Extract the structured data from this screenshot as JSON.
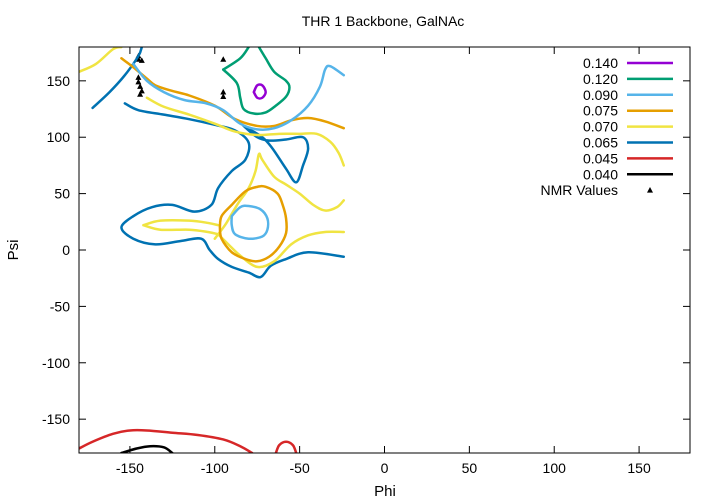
{
  "chart_data": {
    "type": "line",
    "title": "THR 1 Backbone, GalNAc",
    "xlabel": "Phi",
    "ylabel": "Psi",
    "xlim": [
      -180,
      180
    ],
    "ylim": [
      -180,
      180
    ],
    "xticks": [
      -150,
      -100,
      -50,
      0,
      50,
      100,
      150
    ],
    "yticks": [
      -150,
      -100,
      -50,
      0,
      50,
      100,
      150
    ],
    "grid": false,
    "legend_position": "top-right",
    "series": [
      {
        "name": "0.140",
        "color": "#9400d3",
        "contours": [
          [
            [
              -77,
              140
            ],
            [
              -75,
              146
            ],
            [
              -72,
              146
            ],
            [
              -70,
              140
            ],
            [
              -72,
              135
            ],
            [
              -75,
              135
            ],
            [
              -77,
              140
            ]
          ]
        ]
      },
      {
        "name": "0.120",
        "color": "#009e73",
        "contours": [
          [
            [
              -95,
              160
            ],
            [
              -87,
              148
            ],
            [
              -85,
              135
            ],
            [
              -83,
              125
            ],
            [
              -77,
              121
            ],
            [
              -70,
              122
            ],
            [
              -64,
              128
            ],
            [
              -58,
              136
            ],
            [
              -56,
              144
            ],
            [
              -58,
              150
            ],
            [
              -65,
              158
            ],
            [
              -70,
              170
            ],
            [
              -74,
              180
            ]
          ],
          [
            [
              -80,
              180
            ],
            [
              -85,
              170
            ],
            [
              -95,
              160
            ]
          ]
        ]
      },
      {
        "name": "0.090",
        "color": "#56b4e9",
        "contours": [
          [
            [
              -148,
              165
            ],
            [
              -140,
              150
            ],
            [
              -130,
              140
            ],
            [
              -118,
              133
            ],
            [
              -105,
              130
            ],
            [
              -95,
              124
            ],
            [
              -85,
              112
            ],
            [
              -75,
              107
            ],
            [
              -65,
              108
            ],
            [
              -55,
              115
            ],
            [
              -45,
              128
            ],
            [
              -38,
              145
            ],
            [
              -35,
              160
            ],
            [
              -32,
              163
            ],
            [
              -24,
              155
            ]
          ],
          [
            [
              -90,
              30
            ],
            [
              -85,
              38
            ],
            [
              -80,
              39
            ],
            [
              -73,
              36
            ],
            [
              -69,
              28
            ],
            [
              -69,
              18
            ],
            [
              -72,
              12
            ],
            [
              -80,
              10
            ],
            [
              -88,
              14
            ],
            [
              -90,
              22
            ],
            [
              -90,
              30
            ]
          ]
        ]
      },
      {
        "name": "0.075",
        "color": "#e69f00",
        "contours": [
          [
            [
              -155,
              170
            ],
            [
              -148,
              162
            ],
            [
              -140,
              152
            ],
            [
              -135,
              146
            ],
            [
              -125,
              141
            ],
            [
              -115,
              137
            ],
            [
              -100,
              128
            ],
            [
              -88,
              116
            ],
            [
              -75,
              110
            ],
            [
              -65,
              110
            ],
            [
              -55,
              115
            ],
            [
              -45,
              117
            ],
            [
              -35,
              114
            ],
            [
              -24,
              108
            ]
          ],
          [
            [
              -97,
              20
            ],
            [
              -96,
              30
            ],
            [
              -90,
              40
            ],
            [
              -82,
              52
            ],
            [
              -75,
              56
            ],
            [
              -70,
              56
            ],
            [
              -63,
              50
            ],
            [
              -60,
              40
            ],
            [
              -58,
              28
            ],
            [
              -58,
              15
            ],
            [
              -62,
              3
            ],
            [
              -68,
              -6
            ],
            [
              -75,
              -10
            ],
            [
              -82,
              -8
            ],
            [
              -90,
              -2
            ],
            [
              -96,
              10
            ],
            [
              -97,
              20
            ]
          ]
        ]
      },
      {
        "name": "0.070",
        "color": "#f0e442",
        "contours": [
          [
            [
              -180,
              158
            ],
            [
              -170,
              165
            ],
            [
              -160,
              178
            ],
            [
              -155,
              180
            ]
          ],
          [
            [
              -140,
              135
            ],
            [
              -130,
              127
            ],
            [
              -115,
              120
            ],
            [
              -100,
              112
            ],
            [
              -88,
              105
            ],
            [
              -75,
              102
            ],
            [
              -62,
              103
            ],
            [
              -50,
              103
            ],
            [
              -40,
              103
            ],
            [
              -32,
              96
            ],
            [
              -27,
              86
            ],
            [
              -24,
              75
            ]
          ],
          [
            [
              -100,
              10
            ],
            [
              -94,
              22
            ],
            [
              -90,
              32
            ],
            [
              -86,
              42
            ],
            [
              -80,
              55
            ],
            [
              -76,
              70
            ],
            [
              -74,
              85
            ],
            [
              -72,
              80
            ],
            [
              -65,
              65
            ],
            [
              -58,
              58
            ],
            [
              -50,
              50
            ],
            [
              -42,
              40
            ],
            [
              -35,
              35
            ],
            [
              -28,
              38
            ],
            [
              -24,
              44
            ]
          ],
          [
            [
              -142,
              22
            ],
            [
              -132,
              18
            ],
            [
              -115,
              18
            ],
            [
              -104,
              16
            ],
            [
              -98,
              14
            ]
          ],
          [
            [
              -142,
              22
            ],
            [
              -132,
              26
            ],
            [
              -115,
              26
            ],
            [
              -104,
              24
            ],
            [
              -98,
              22
            ]
          ],
          [
            [
              -98,
              14
            ],
            [
              -92,
              5
            ],
            [
              -85,
              -5
            ],
            [
              -75,
              -15
            ],
            [
              -65,
              -10
            ],
            [
              -55,
              5
            ],
            [
              -45,
              13
            ],
            [
              -35,
              16
            ],
            [
              -24,
              16
            ]
          ]
        ]
      },
      {
        "name": "0.065",
        "color": "#0072b2",
        "contours": [
          [
            [
              -172,
              126
            ],
            [
              -162,
              140
            ],
            [
              -153,
              155
            ],
            [
              -145,
              172
            ],
            [
              -143,
              180
            ]
          ],
          [
            [
              -153,
              130
            ],
            [
              -145,
              124
            ],
            [
              -130,
              120
            ],
            [
              -115,
              116
            ],
            [
              -100,
              111
            ],
            [
              -88,
              106
            ],
            [
              -80,
              95
            ],
            [
              -82,
              80
            ],
            [
              -90,
              70
            ],
            [
              -98,
              55
            ],
            [
              -102,
              40
            ],
            [
              -112,
              34
            ],
            [
              -125,
              40
            ],
            [
              -137,
              38
            ],
            [
              -148,
              30
            ],
            [
              -155,
              20
            ],
            [
              -148,
              10
            ],
            [
              -135,
              5
            ],
            [
              -120,
              8
            ],
            [
              -108,
              10
            ],
            [
              -103,
              0
            ],
            [
              -98,
              -8
            ],
            [
              -90,
              -15
            ],
            [
              -80,
              -20
            ],
            [
              -73,
              -24
            ],
            [
              -67,
              -14
            ],
            [
              -58,
              -8
            ],
            [
              -45,
              -2
            ],
            [
              -24,
              -6
            ]
          ],
          [
            [
              -83,
              110
            ],
            [
              -75,
              100
            ],
            [
              -68,
              97
            ],
            [
              -58,
              98
            ],
            [
              -48,
              100
            ],
            [
              -45,
              90
            ],
            [
              -48,
              75
            ],
            [
              -52,
              60
            ],
            [
              -58,
              72
            ],
            [
              -66,
              90
            ],
            [
              -72,
              100
            ],
            [
              -83,
              110
            ]
          ]
        ]
      },
      {
        "name": "0.045",
        "color": "#d62728",
        "contours": [
          [
            [
              -180,
              -176
            ],
            [
              -172,
              -170
            ],
            [
              -160,
              -163
            ],
            [
              -150,
              -160
            ],
            [
              -140,
              -160
            ],
            [
              -125,
              -162
            ],
            [
              -110,
              -164
            ],
            [
              -95,
              -168
            ],
            [
              -85,
              -174
            ],
            [
              -78,
              -180
            ]
          ],
          [
            [
              -64,
              -180
            ],
            [
              -62,
              -173
            ],
            [
              -58,
              -170
            ],
            [
              -54,
              -173
            ],
            [
              -52,
              -180
            ]
          ]
        ]
      },
      {
        "name": "0.040",
        "color": "#000000",
        "contours": [
          [
            [
              -155,
              -180
            ],
            [
              -146,
              -176
            ],
            [
              -138,
              -174
            ],
            [
              -130,
              -175
            ],
            [
              -125,
              -180
            ]
          ]
        ]
      },
      {
        "name": "NMR Values",
        "color": "#000000",
        "marker": "triangle",
        "points": [
          [
            -145,
            172
          ],
          [
            -145,
            169
          ],
          [
            -143,
            168
          ],
          [
            -145,
            153
          ],
          [
            -145,
            149
          ],
          [
            -144,
            145
          ],
          [
            -143,
            141
          ],
          [
            -144,
            138
          ],
          [
            -95,
            169
          ],
          [
            -95,
            140
          ],
          [
            -95,
            136
          ]
        ]
      }
    ]
  }
}
